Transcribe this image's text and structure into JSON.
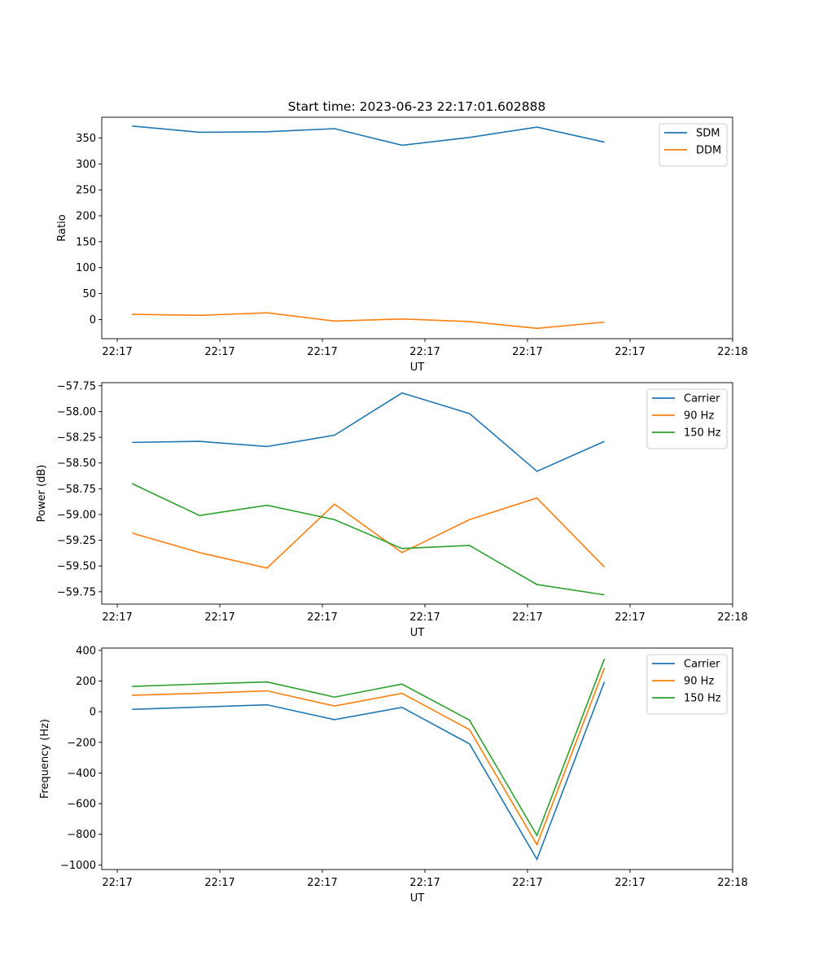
{
  "figure": {
    "title": "Start time: 2023-06-23 22:17:01.602888"
  },
  "colors": {
    "blue": "#1f77b4",
    "orange": "#ff7f0e",
    "green": "#2ca02c"
  },
  "chart_data": [
    {
      "type": "line",
      "title": "Start time: 2023-06-23 22:17:01.602888",
      "xlabel": "UT",
      "ylabel": "Ratio",
      "x_tick_labels": [
        "22:17",
        "22:17",
        "22:17",
        "22:17",
        "22:17",
        "22:17",
        "22:18"
      ],
      "y_ticks": [
        0,
        50,
        100,
        150,
        200,
        250,
        300,
        350
      ],
      "ylim": [
        -37,
        390
      ],
      "x": [
        1,
        2,
        3,
        4,
        5,
        6,
        7,
        8
      ],
      "legend": "top-right",
      "grid": false,
      "series": [
        {
          "name": "SDM",
          "color": "#1f77b4",
          "values": [
            373,
            361,
            362,
            368,
            336,
            351,
            371,
            342
          ]
        },
        {
          "name": "DDM",
          "color": "#ff7f0e",
          "values": [
            10,
            8,
            13,
            -3,
            1,
            -4,
            -17,
            -5
          ]
        }
      ]
    },
    {
      "type": "line",
      "xlabel": "UT",
      "ylabel": "Power (dB)",
      "x_tick_labels": [
        "22:17",
        "22:17",
        "22:17",
        "22:17",
        "22:17",
        "22:17",
        "22:18"
      ],
      "y_ticks": [
        -59.75,
        -59.5,
        -59.25,
        -59.0,
        -58.75,
        -58.5,
        -58.25,
        -58.0,
        -57.75
      ],
      "y_tick_labels": [
        "−59.75",
        "−59.50",
        "−59.25",
        "−59.00",
        "−58.75",
        "−58.50",
        "−58.25",
        "−58.00",
        "−57.75"
      ],
      "ylim": [
        -59.87,
        -57.72
      ],
      "x": [
        1,
        2,
        3,
        4,
        5,
        6,
        7,
        8
      ],
      "legend": "top-right",
      "grid": false,
      "series": [
        {
          "name": "Carrier",
          "color": "#1f77b4",
          "values": [
            -58.3,
            -58.29,
            -58.34,
            -58.23,
            -57.82,
            -58.02,
            -58.58,
            -58.29
          ]
        },
        {
          "name": "90 Hz",
          "color": "#ff7f0e",
          "values": [
            -59.18,
            -59.37,
            -59.52,
            -58.9,
            -59.37,
            -59.05,
            -58.84,
            -59.51
          ]
        },
        {
          "name": "150 Hz",
          "color": "#2ca02c",
          "values": [
            -58.7,
            -59.01,
            -58.91,
            -59.05,
            -59.33,
            -59.3,
            -59.68,
            -59.78
          ]
        }
      ]
    },
    {
      "type": "line",
      "xlabel": "UT",
      "ylabel": "Frequency (Hz)",
      "x_tick_labels": [
        "22:17",
        "22:17",
        "22:17",
        "22:17",
        "22:17",
        "22:17",
        "22:18"
      ],
      "y_ticks": [
        -1000,
        -800,
        -600,
        -400,
        -200,
        0,
        200,
        400
      ],
      "y_tick_labels": [
        "−1000",
        "−800",
        "−600",
        "−400",
        "−200",
        "0",
        "200",
        "400"
      ],
      "ylim": [
        -1030,
        415
      ],
      "x": [
        1,
        2,
        3,
        4,
        5,
        6,
        7,
        8
      ],
      "legend": "top-right",
      "grid": false,
      "series": [
        {
          "name": "Carrier",
          "color": "#1f77b4",
          "values": [
            15,
            30,
            45,
            -52,
            28,
            -210,
            -963,
            195
          ]
        },
        {
          "name": "90 Hz",
          "color": "#ff7f0e",
          "values": [
            107,
            120,
            136,
            37,
            120,
            -117,
            -868,
            286
          ]
        },
        {
          "name": "150 Hz",
          "color": "#2ca02c",
          "values": [
            165,
            180,
            194,
            95,
            180,
            -55,
            -808,
            345
          ]
        }
      ]
    }
  ]
}
